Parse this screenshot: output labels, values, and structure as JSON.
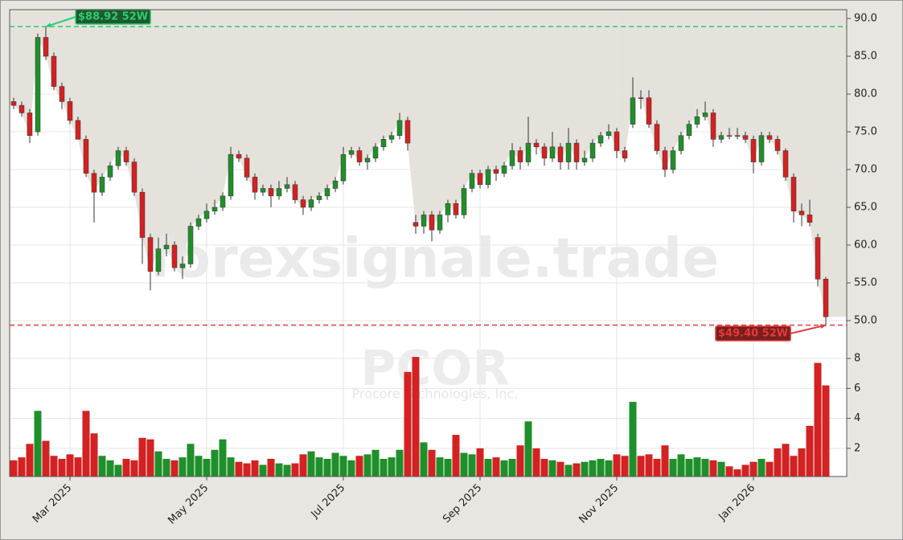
{
  "chart_data": {
    "type": "candlestick",
    "watermarks": [
      "forexsignale.trade",
      "PCOR",
      "Procore Technologies, Inc."
    ],
    "categories": [
      null,
      null,
      null,
      null,
      null,
      null,
      null,
      "Mar 2025",
      null,
      null,
      null,
      null,
      null,
      null,
      null,
      null,
      null,
      null,
      null,
      null,
      null,
      null,
      null,
      null,
      "May 2025",
      null,
      null,
      null,
      null,
      null,
      null,
      null,
      null,
      null,
      null,
      null,
      null,
      null,
      null,
      null,
      null,
      "Jul 2025",
      null,
      null,
      null,
      null,
      null,
      null,
      null,
      null,
      null,
      null,
      null,
      null,
      null,
      null,
      null,
      null,
      "Sep 2025",
      null,
      null,
      null,
      null,
      null,
      null,
      null,
      null,
      null,
      null,
      null,
      null,
      null,
      null,
      null,
      null,
      "Nov 2025",
      null,
      null,
      null,
      null,
      null,
      null,
      null,
      null,
      null,
      null,
      null,
      null,
      null,
      null,
      null,
      null,
      "Jan 2026",
      null,
      null,
      null,
      null,
      null,
      null,
      null,
      null,
      null
    ],
    "open": [
      79,
      78.5,
      77.5,
      75,
      87.5,
      85,
      81,
      79,
      76.5,
      74,
      69.5,
      67,
      69,
      70.5,
      72.5,
      71,
      67,
      61,
      56.5,
      59.5,
      60,
      57,
      57.5,
      62.5,
      63.5,
      64.5,
      65,
      66.5,
      72,
      71.5,
      69,
      67,
      67.5,
      66.5,
      67.5,
      68,
      66,
      65,
      66,
      66.5,
      67.5,
      68.5,
      72,
      72.5,
      71,
      71.5,
      73,
      74,
      74.5,
      76.5,
      63,
      62.5,
      64,
      62,
      64,
      65.5,
      64,
      67.5,
      69.5,
      68,
      70,
      69.5,
      70.5,
      72.5,
      71,
      73.5,
      73,
      71.5,
      73,
      71,
      73.5,
      71,
      71.5,
      73.5,
      74.5,
      75,
      72.5,
      76,
      79.5,
      79.5,
      76,
      72.5,
      70,
      72.5,
      74.5,
      76,
      77,
      77.5,
      74,
      74.5,
      74.5,
      74.5,
      74,
      71,
      74.5,
      74,
      72.5,
      69,
      64.5,
      64,
      61,
      55.5
    ],
    "high": [
      79.5,
      79,
      78,
      88,
      88.92,
      85.5,
      81.5,
      79.5,
      77,
      74.5,
      70,
      69.5,
      71,
      73,
      73,
      71.5,
      67.5,
      61.5,
      61,
      61.5,
      60.5,
      58.5,
      63,
      64,
      65.5,
      66,
      67,
      73,
      72.5,
      72,
      69.5,
      68,
      68,
      68.5,
      69,
      68.5,
      66.5,
      66.5,
      67,
      68,
      69,
      73,
      73,
      73,
      72,
      73.5,
      74.5,
      75,
      77.5,
      77,
      64,
      64.5,
      64.5,
      64.5,
      66,
      66,
      68,
      70,
      70,
      70.5,
      70.5,
      71,
      73.5,
      73,
      77,
      74,
      73.5,
      75,
      73.5,
      75.5,
      74,
      72.5,
      74,
      75,
      76,
      75.5,
      73,
      82.2,
      80.5,
      80.5,
      76.5,
      73,
      73,
      75,
      76.5,
      78,
      79,
      78,
      75,
      75.5,
      75.5,
      75,
      74.5,
      75,
      75,
      74.5,
      72.8,
      69.5,
      65.5,
      66,
      61.5,
      55.8
    ],
    "low": [
      78,
      77,
      73.5,
      74.5,
      84.5,
      80.5,
      78,
      76,
      74,
      69,
      63,
      66.5,
      68.5,
      70,
      70.5,
      66.5,
      57.5,
      54,
      56,
      58.5,
      56.5,
      55.5,
      57,
      62,
      63,
      64,
      64.5,
      66,
      71,
      68.5,
      66,
      66.5,
      65,
      66,
      67,
      65.5,
      64,
      64.5,
      65.5,
      66,
      67,
      68,
      71.5,
      70.5,
      70,
      71,
      72.5,
      73.5,
      74,
      72.5,
      61.5,
      61.5,
      60.5,
      61.5,
      63,
      63.5,
      63.5,
      67,
      67.5,
      67.5,
      68.5,
      69,
      70,
      70,
      70.5,
      72,
      70.5,
      71,
      70,
      70,
      70,
      70.5,
      71,
      73,
      74,
      71.5,
      71,
      75.5,
      78,
      75.5,
      72,
      69,
      69.5,
      72,
      74,
      75.5,
      76.5,
      73,
      73.5,
      74,
      74,
      73.5,
      69.5,
      70.5,
      73.5,
      72,
      68.5,
      63,
      62.5,
      62.5,
      54.5,
      49.4
    ],
    "close": [
      78.5,
      77.5,
      74.5,
      87.5,
      85,
      81,
      79,
      76.5,
      74,
      69.5,
      67,
      69,
      70.5,
      72.5,
      71,
      67,
      61,
      56.5,
      59.5,
      60,
      57,
      57.5,
      62.5,
      63.5,
      64.5,
      65,
      66.5,
      72,
      71.5,
      69,
      67,
      67.5,
      66.5,
      67.5,
      68,
      66,
      65,
      66,
      66.5,
      67.5,
      68.5,
      72,
      72.5,
      71,
      71.5,
      73,
      74,
      74.5,
      76.5,
      73.5,
      62.5,
      64,
      62,
      64,
      65.5,
      64,
      67.5,
      69.5,
      68,
      70,
      69.5,
      70.5,
      72.5,
      71,
      73.5,
      73,
      71.5,
      73,
      71,
      73.5,
      71,
      71.5,
      73.5,
      74.5,
      75,
      72.5,
      71.5,
      79.5,
      79.5,
      76,
      72.5,
      70,
      72.5,
      74.5,
      76,
      77,
      77.5,
      74,
      74.5,
      74.5,
      74.5,
      74,
      71,
      74.5,
      74,
      72.5,
      69,
      64.5,
      64,
      63,
      55.5,
      50.5
    ],
    "volume": [
      1.2,
      1.4,
      2.3,
      4.5,
      2.5,
      1.5,
      1.3,
      1.6,
      1.4,
      4.5,
      3.0,
      1.5,
      1.2,
      0.9,
      1.3,
      1.2,
      2.7,
      2.6,
      1.8,
      1.3,
      1.2,
      1.4,
      2.3,
      1.5,
      1.3,
      1.9,
      2.6,
      1.4,
      1.1,
      1.0,
      1.2,
      0.9,
      1.3,
      1.0,
      0.9,
      1.0,
      1.6,
      1.8,
      1.4,
      1.3,
      1.7,
      1.5,
      1.2,
      1.5,
      1.6,
      1.9,
      1.3,
      1.4,
      1.9,
      7.1,
      8.1,
      2.4,
      1.9,
      1.4,
      1.3,
      2.9,
      1.7,
      1.6,
      2.0,
      1.3,
      1.4,
      1.2,
      1.3,
      2.2,
      3.8,
      2.0,
      1.3,
      1.2,
      1.1,
      0.9,
      1.0,
      1.1,
      1.2,
      1.3,
      1.2,
      1.6,
      1.5,
      5.1,
      1.5,
      1.6,
      1.3,
      2.2,
      1.3,
      1.6,
      1.3,
      1.4,
      1.3,
      1.2,
      1.1,
      0.8,
      0.6,
      0.9,
      1.1,
      1.3,
      1.1,
      2.0,
      2.3,
      1.5,
      2.0,
      3.5,
      7.7,
      6.2
    ],
    "up_color": "#1f8f2a",
    "down_color": "#d42121",
    "ylim": [
      46.7,
      91.17
    ],
    "yticks": [
      {
        "value": 50,
        "label": "50.0"
      },
      {
        "value": 55,
        "label": "55.0"
      },
      {
        "value": 60,
        "label": "60.0"
      },
      {
        "value": 65,
        "label": "65.0"
      },
      {
        "value": 70,
        "label": "70.0"
      },
      {
        "value": 75,
        "label": "75.0"
      },
      {
        "value": 80,
        "label": "80.0"
      },
      {
        "value": 85,
        "label": "85.0"
      },
      {
        "value": 90,
        "label": "90.0"
      }
    ],
    "volume_ylim": [
      0.12,
      8.86
    ],
    "volume_yticks": [
      2,
      4,
      6,
      8
    ],
    "grid": true,
    "annotations": [
      {
        "value": 88.92,
        "label": "$88.92 52W",
        "color": "#2ecc71"
      },
      {
        "value": 49.4,
        "label": "$49.40 52W",
        "color": "#e03b3b"
      }
    ]
  }
}
